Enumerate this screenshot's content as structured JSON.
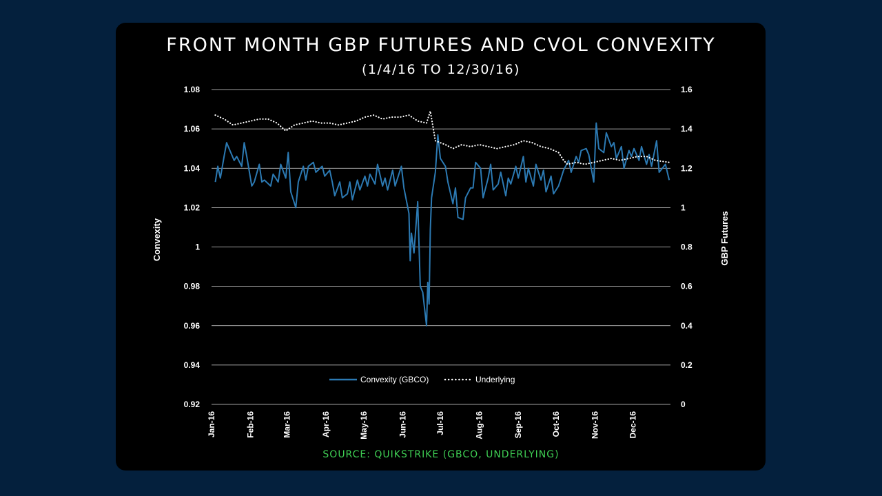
{
  "colors": {
    "page_background": "#04203d",
    "card_background": "#000000",
    "convexity_line": "#2c7ab3",
    "underlying_line": "#ffffff",
    "source_text": "#3fcf54",
    "gridline": "#ffffff"
  },
  "header": {
    "title": "FRONT MONTH GBP FUTURES AND CVOL CONVEXITY",
    "subtitle": "(1/4/16 TO 12/30/16)"
  },
  "footer": {
    "source": "SOURCE: QUIKSTRIKE (GBCO, UNDERLYING)"
  },
  "chart_data": {
    "type": "line",
    "grid": true,
    "legend_position": "bottom-center",
    "x_ticks": [
      "Jan-16",
      "Feb-16",
      "Mar-16",
      "Apr-16",
      "May-16",
      "Jun-16",
      "Jul-16",
      "Aug-16",
      "Sep-16",
      "Oct-16",
      "Nov-16",
      "Dec-16"
    ],
    "y_left": {
      "label": "Convexity",
      "ticks": [
        "0.92",
        "0.94",
        "0.96",
        "0.98",
        "1",
        "1.02",
        "1.04",
        "1.06",
        "1.08"
      ],
      "ylim": [
        0.92,
        1.08
      ]
    },
    "y_right": {
      "label": "GBP Futures",
      "ticks": [
        "0",
        "0.2",
        "0.4",
        "0.6",
        "0.8",
        "1",
        "1.2",
        "1.4",
        "1.6"
      ],
      "ylim": [
        0,
        1.6
      ]
    },
    "series": [
      {
        "name": "Convexity (GBCO)",
        "axis": "left",
        "style": "solid",
        "points": [
          [
            "2016-01-04",
            1.033
          ],
          [
            "2016-01-06",
            1.041
          ],
          [
            "2016-01-08",
            1.035
          ],
          [
            "2016-01-11",
            1.046
          ],
          [
            "2016-01-13",
            1.053
          ],
          [
            "2016-01-15",
            1.05
          ],
          [
            "2016-01-19",
            1.044
          ],
          [
            "2016-01-21",
            1.046
          ],
          [
            "2016-01-25",
            1.041
          ],
          [
            "2016-01-27",
            1.053
          ],
          [
            "2016-01-29",
            1.046
          ],
          [
            "2016-02-02",
            1.031
          ],
          [
            "2016-02-04",
            1.033
          ],
          [
            "2016-02-08",
            1.042
          ],
          [
            "2016-02-10",
            1.033
          ],
          [
            "2016-02-12",
            1.034
          ],
          [
            "2016-02-17",
            1.031
          ],
          [
            "2016-02-19",
            1.037
          ],
          [
            "2016-02-23",
            1.033
          ],
          [
            "2016-02-25",
            1.042
          ],
          [
            "2016-02-29",
            1.035
          ],
          [
            "2016-03-02",
            1.048
          ],
          [
            "2016-03-04",
            1.028
          ],
          [
            "2016-03-08",
            1.02
          ],
          [
            "2016-03-10",
            1.033
          ],
          [
            "2016-03-14",
            1.041
          ],
          [
            "2016-03-16",
            1.034
          ],
          [
            "2016-03-18",
            1.041
          ],
          [
            "2016-03-22",
            1.043
          ],
          [
            "2016-03-24",
            1.038
          ],
          [
            "2016-03-29",
            1.041
          ],
          [
            "2016-03-31",
            1.036
          ],
          [
            "2016-04-04",
            1.039
          ],
          [
            "2016-04-06",
            1.033
          ],
          [
            "2016-04-08",
            1.026
          ],
          [
            "2016-04-12",
            1.033
          ],
          [
            "2016-04-14",
            1.025
          ],
          [
            "2016-04-18",
            1.027
          ],
          [
            "2016-04-20",
            1.033
          ],
          [
            "2016-04-22",
            1.024
          ],
          [
            "2016-04-26",
            1.034
          ],
          [
            "2016-04-28",
            1.029
          ],
          [
            "2016-05-02",
            1.036
          ],
          [
            "2016-05-04",
            1.031
          ],
          [
            "2016-05-06",
            1.037
          ],
          [
            "2016-05-10",
            1.032
          ],
          [
            "2016-05-12",
            1.042
          ],
          [
            "2016-05-16",
            1.031
          ],
          [
            "2016-05-18",
            1.035
          ],
          [
            "2016-05-20",
            1.029
          ],
          [
            "2016-05-24",
            1.039
          ],
          [
            "2016-05-26",
            1.031
          ],
          [
            "2016-05-31",
            1.041
          ],
          [
            "2016-06-02",
            1.03
          ],
          [
            "2016-06-06",
            1.017
          ],
          [
            "2016-06-07",
            0.993
          ],
          [
            "2016-06-08",
            1.007
          ],
          [
            "2016-06-10",
            0.997
          ],
          [
            "2016-06-13",
            1.023
          ],
          [
            "2016-06-15",
            0.98
          ],
          [
            "2016-06-17",
            0.977
          ],
          [
            "2016-06-20",
            0.96
          ],
          [
            "2016-06-21",
            0.982
          ],
          [
            "2016-06-22",
            0.971
          ],
          [
            "2016-06-23",
            1.009
          ],
          [
            "2016-06-24",
            1.025
          ],
          [
            "2016-06-27",
            1.038
          ],
          [
            "2016-06-29",
            1.057
          ],
          [
            "2016-07-01",
            1.045
          ],
          [
            "2016-07-05",
            1.041
          ],
          [
            "2016-07-07",
            1.033
          ],
          [
            "2016-07-11",
            1.022
          ],
          [
            "2016-07-13",
            1.03
          ],
          [
            "2016-07-15",
            1.015
          ],
          [
            "2016-07-19",
            1.014
          ],
          [
            "2016-07-21",
            1.025
          ],
          [
            "2016-07-25",
            1.03
          ],
          [
            "2016-07-27",
            1.03
          ],
          [
            "2016-07-29",
            1.043
          ],
          [
            "2016-08-02",
            1.04
          ],
          [
            "2016-08-04",
            1.025
          ],
          [
            "2016-08-08",
            1.035
          ],
          [
            "2016-08-10",
            1.042
          ],
          [
            "2016-08-12",
            1.029
          ],
          [
            "2016-08-16",
            1.032
          ],
          [
            "2016-08-18",
            1.038
          ],
          [
            "2016-08-22",
            1.026
          ],
          [
            "2016-08-24",
            1.035
          ],
          [
            "2016-08-26",
            1.032
          ],
          [
            "2016-08-30",
            1.041
          ],
          [
            "2016-09-01",
            1.035
          ],
          [
            "2016-09-05",
            1.046
          ],
          [
            "2016-09-07",
            1.033
          ],
          [
            "2016-09-09",
            1.04
          ],
          [
            "2016-09-13",
            1.031
          ],
          [
            "2016-09-15",
            1.042
          ],
          [
            "2016-09-19",
            1.034
          ],
          [
            "2016-09-21",
            1.039
          ],
          [
            "2016-09-23",
            1.028
          ],
          [
            "2016-09-27",
            1.036
          ],
          [
            "2016-09-29",
            1.027
          ],
          [
            "2016-10-03",
            1.031
          ],
          [
            "2016-10-05",
            1.035
          ],
          [
            "2016-10-07",
            1.039
          ],
          [
            "2016-10-11",
            1.044
          ],
          [
            "2016-10-13",
            1.038
          ],
          [
            "2016-10-17",
            1.046
          ],
          [
            "2016-10-19",
            1.043
          ],
          [
            "2016-10-21",
            1.049
          ],
          [
            "2016-10-25",
            1.05
          ],
          [
            "2016-10-27",
            1.047
          ],
          [
            "2016-10-31",
            1.033
          ],
          [
            "2016-11-02",
            1.063
          ],
          [
            "2016-11-04",
            1.05
          ],
          [
            "2016-11-08",
            1.048
          ],
          [
            "2016-11-10",
            1.058
          ],
          [
            "2016-11-14",
            1.051
          ],
          [
            "2016-11-16",
            1.053
          ],
          [
            "2016-11-18",
            1.045
          ],
          [
            "2016-11-22",
            1.051
          ],
          [
            "2016-11-24",
            1.04
          ],
          [
            "2016-11-28",
            1.049
          ],
          [
            "2016-11-30",
            1.046
          ],
          [
            "2016-12-02",
            1.05
          ],
          [
            "2016-12-06",
            1.044
          ],
          [
            "2016-12-08",
            1.051
          ],
          [
            "2016-12-12",
            1.042
          ],
          [
            "2016-12-14",
            1.047
          ],
          [
            "2016-12-16",
            1.041
          ],
          [
            "2016-12-20",
            1.054
          ],
          [
            "2016-12-22",
            1.038
          ],
          [
            "2016-12-27",
            1.042
          ],
          [
            "2016-12-30",
            1.034
          ]
        ]
      },
      {
        "name": "Underlying",
        "axis": "right",
        "style": "dotted",
        "points": [
          [
            "2016-01-04",
            1.47
          ],
          [
            "2016-01-11",
            1.45
          ],
          [
            "2016-01-18",
            1.42
          ],
          [
            "2016-01-25",
            1.43
          ],
          [
            "2016-02-01",
            1.44
          ],
          [
            "2016-02-08",
            1.45
          ],
          [
            "2016-02-15",
            1.45
          ],
          [
            "2016-02-22",
            1.43
          ],
          [
            "2016-02-29",
            1.39
          ],
          [
            "2016-03-07",
            1.42
          ],
          [
            "2016-03-14",
            1.43
          ],
          [
            "2016-03-21",
            1.44
          ],
          [
            "2016-03-28",
            1.43
          ],
          [
            "2016-04-04",
            1.43
          ],
          [
            "2016-04-11",
            1.42
          ],
          [
            "2016-04-18",
            1.43
          ],
          [
            "2016-04-25",
            1.44
          ],
          [
            "2016-05-02",
            1.46
          ],
          [
            "2016-05-09",
            1.47
          ],
          [
            "2016-05-16",
            1.45
          ],
          [
            "2016-05-23",
            1.46
          ],
          [
            "2016-05-30",
            1.46
          ],
          [
            "2016-06-06",
            1.47
          ],
          [
            "2016-06-13",
            1.44
          ],
          [
            "2016-06-20",
            1.43
          ],
          [
            "2016-06-23",
            1.49
          ],
          [
            "2016-06-27",
            1.34
          ],
          [
            "2016-07-05",
            1.32
          ],
          [
            "2016-07-11",
            1.3
          ],
          [
            "2016-07-18",
            1.32
          ],
          [
            "2016-07-25",
            1.31
          ],
          [
            "2016-08-01",
            1.32
          ],
          [
            "2016-08-08",
            1.31
          ],
          [
            "2016-08-15",
            1.3
          ],
          [
            "2016-08-22",
            1.31
          ],
          [
            "2016-08-29",
            1.32
          ],
          [
            "2016-09-05",
            1.34
          ],
          [
            "2016-09-12",
            1.33
          ],
          [
            "2016-09-19",
            1.31
          ],
          [
            "2016-09-26",
            1.3
          ],
          [
            "2016-10-03",
            1.28
          ],
          [
            "2016-10-07",
            1.24
          ],
          [
            "2016-10-10",
            1.22
          ],
          [
            "2016-10-17",
            1.23
          ],
          [
            "2016-10-24",
            1.22
          ],
          [
            "2016-10-31",
            1.23
          ],
          [
            "2016-11-07",
            1.24
          ],
          [
            "2016-11-14",
            1.25
          ],
          [
            "2016-11-21",
            1.24
          ],
          [
            "2016-11-28",
            1.25
          ],
          [
            "2016-12-05",
            1.26
          ],
          [
            "2016-12-12",
            1.26
          ],
          [
            "2016-12-19",
            1.24
          ],
          [
            "2016-12-30",
            1.23
          ]
        ]
      }
    ]
  }
}
